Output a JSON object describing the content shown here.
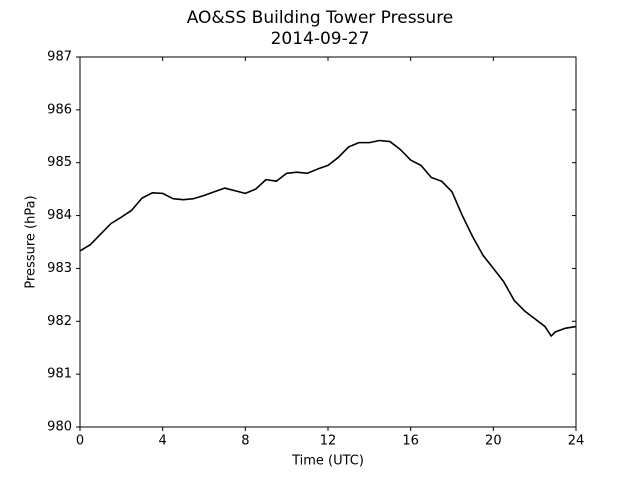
{
  "chart_data": {
    "type": "line",
    "title": "AO&SS Building Tower Pressure",
    "subtitle": "2014-09-27",
    "x_label": "Time (UTC)",
    "y_label": "Pressure (hPa)",
    "x": [
      0,
      0.5,
      1,
      1.5,
      2,
      2.5,
      3,
      3.5,
      4,
      4.5,
      5,
      5.5,
      6,
      6.5,
      7,
      7.5,
      8,
      8.5,
      9,
      9.5,
      10,
      10.5,
      11,
      11.5,
      12,
      12.5,
      13,
      13.5,
      14,
      14.5,
      15,
      15.5,
      16,
      16.5,
      17,
      17.5,
      18,
      18.5,
      19,
      19.5,
      20,
      20.5,
      21,
      21.5,
      22,
      22.5,
      22.8,
      23,
      23.5,
      24
    ],
    "series": [
      {
        "name": "Pressure",
        "color": "#000000",
        "values": [
          983.33,
          983.45,
          983.65,
          983.85,
          983.97,
          984.1,
          984.33,
          984.43,
          984.42,
          984.32,
          984.3,
          984.32,
          984.38,
          984.45,
          984.52,
          984.47,
          984.42,
          984.5,
          984.68,
          984.65,
          984.8,
          984.82,
          984.8,
          984.88,
          984.95,
          985.1,
          985.3,
          985.38,
          985.38,
          985.42,
          985.4,
          985.25,
          985.05,
          984.95,
          984.72,
          984.65,
          984.45,
          984.0,
          983.6,
          983.25,
          983.0,
          982.75,
          982.4,
          982.2,
          982.05,
          981.9,
          981.72,
          981.8,
          981.87,
          981.9
        ]
      }
    ],
    "xlim": [
      0,
      24
    ],
    "xticks": [
      0,
      4,
      8,
      12,
      16,
      20,
      24
    ],
    "ylim": [
      980,
      987
    ],
    "yticks": [
      980,
      981,
      982,
      983,
      984,
      985,
      986,
      987
    ],
    "grid": false
  }
}
